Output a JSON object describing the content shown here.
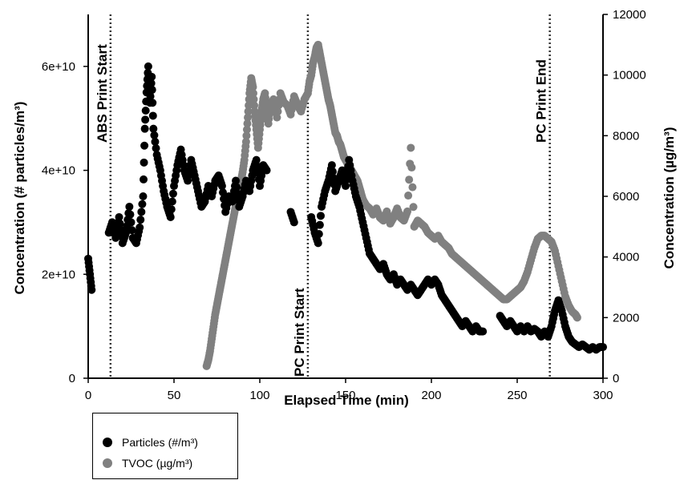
{
  "chart_data": {
    "type": "scatter",
    "xlabel": "Elapsed Time (min)",
    "ylabel_left": "Concentration (# particles/m³)",
    "ylabel_right": "Concentration (µg/m³)",
    "xlim": [
      0,
      300
    ],
    "ylim_left": [
      0,
      70000000000
    ],
    "ylim_right": [
      0,
      12000
    ],
    "x_ticks": [
      0,
      50,
      100,
      150,
      200,
      250,
      300
    ],
    "y_left_ticks": [
      0,
      20000000000,
      40000000000,
      60000000000
    ],
    "y_left_tick_labels": [
      "0",
      "2e+10",
      "4e+10",
      "6e+10"
    ],
    "y_right_ticks": [
      0,
      2000,
      4000,
      6000,
      8000,
      10000,
      12000
    ],
    "annotations": [
      {
        "x": 13,
        "label": "ABS Print Start"
      },
      {
        "x": 128,
        "label": "PC Print Start"
      },
      {
        "x": 269,
        "label": "PC Print End"
      }
    ],
    "legend_placement": "bottom-left, outside plot",
    "series": [
      {
        "name": "Particles (#/m³)",
        "axis": "left",
        "color": "#000000",
        "points": [
          [
            0,
            23000000000
          ],
          [
            1,
            20000000000
          ],
          [
            2,
            17000000000
          ],
          [
            12,
            28000000000
          ],
          [
            14,
            30000000000
          ],
          [
            16,
            27000000000
          ],
          [
            18,
            31000000000
          ],
          [
            20,
            26000000000
          ],
          [
            22,
            28000000000
          ],
          [
            24,
            33000000000
          ],
          [
            26,
            27000000000
          ],
          [
            28,
            26000000000
          ],
          [
            30,
            29000000000
          ],
          [
            32,
            35000000000
          ],
          [
            33,
            48000000000
          ],
          [
            34,
            55000000000
          ],
          [
            35,
            60000000000
          ],
          [
            36,
            53000000000
          ],
          [
            37,
            58000000000
          ],
          [
            38,
            48000000000
          ],
          [
            40,
            43000000000
          ],
          [
            42,
            40000000000
          ],
          [
            44,
            36000000000
          ],
          [
            46,
            33000000000
          ],
          [
            48,
            31000000000
          ],
          [
            50,
            37000000000
          ],
          [
            52,
            41000000000
          ],
          [
            54,
            44000000000
          ],
          [
            56,
            40000000000
          ],
          [
            58,
            38000000000
          ],
          [
            60,
            42000000000
          ],
          [
            62,
            39000000000
          ],
          [
            64,
            36000000000
          ],
          [
            66,
            33000000000
          ],
          [
            68,
            34000000000
          ],
          [
            70,
            37000000000
          ],
          [
            72,
            35000000000
          ],
          [
            74,
            38000000000
          ],
          [
            76,
            39000000000
          ],
          [
            78,
            37000000000
          ],
          [
            80,
            32000000000
          ],
          [
            82,
            35000000000
          ],
          [
            84,
            34000000000
          ],
          [
            86,
            38000000000
          ],
          [
            88,
            33000000000
          ],
          [
            90,
            35000000000
          ],
          [
            92,
            38000000000
          ],
          [
            94,
            36000000000
          ],
          [
            96,
            40000000000
          ],
          [
            98,
            42000000000
          ],
          [
            100,
            37000000000
          ],
          [
            102,
            41000000000
          ],
          [
            104,
            40000000000
          ],
          [
            118,
            32000000000
          ],
          [
            120,
            30000000000
          ],
          [
            130,
            31000000000
          ],
          [
            132,
            28000000000
          ],
          [
            134,
            26000000000
          ],
          [
            136,
            33000000000
          ],
          [
            138,
            36000000000
          ],
          [
            140,
            38000000000
          ],
          [
            142,
            41000000000
          ],
          [
            144,
            36000000000
          ],
          [
            146,
            38000000000
          ],
          [
            148,
            40000000000
          ],
          [
            150,
            37000000000
          ],
          [
            152,
            42000000000
          ],
          [
            154,
            38000000000
          ],
          [
            156,
            35000000000
          ],
          [
            158,
            33000000000
          ],
          [
            160,
            30000000000
          ],
          [
            162,
            27000000000
          ],
          [
            164,
            24000000000
          ],
          [
            166,
            23000000000
          ],
          [
            168,
            22000000000
          ],
          [
            170,
            21000000000
          ],
          [
            172,
            22000000000
          ],
          [
            174,
            20000000000
          ],
          [
            176,
            19000000000
          ],
          [
            178,
            20000000000
          ],
          [
            180,
            18000000000
          ],
          [
            182,
            19000000000
          ],
          [
            184,
            18000000000
          ],
          [
            186,
            17000000000
          ],
          [
            188,
            18000000000
          ],
          [
            190,
            17000000000
          ],
          [
            192,
            16000000000
          ],
          [
            194,
            17000000000
          ],
          [
            196,
            18000000000
          ],
          [
            198,
            19000000000
          ],
          [
            200,
            18000000000
          ],
          [
            202,
            19000000000
          ],
          [
            204,
            18000000000
          ],
          [
            206,
            16000000000
          ],
          [
            208,
            15000000000
          ],
          [
            210,
            14000000000
          ],
          [
            212,
            13000000000
          ],
          [
            214,
            12000000000
          ],
          [
            216,
            11000000000
          ],
          [
            218,
            10000000000
          ],
          [
            220,
            11000000000
          ],
          [
            222,
            10000000000
          ],
          [
            224,
            9000000000
          ],
          [
            226,
            10000000000
          ],
          [
            228,
            9000000000
          ],
          [
            230,
            9000000000
          ],
          [
            240,
            12000000000
          ],
          [
            242,
            11000000000
          ],
          [
            244,
            10000000000
          ],
          [
            246,
            11000000000
          ],
          [
            248,
            10000000000
          ],
          [
            250,
            9000000000
          ],
          [
            252,
            10000000000
          ],
          [
            254,
            9000000000
          ],
          [
            256,
            10000000000
          ],
          [
            258,
            9000000000
          ],
          [
            260,
            9500000000
          ],
          [
            262,
            9000000000
          ],
          [
            264,
            8000000000
          ],
          [
            266,
            9000000000
          ],
          [
            268,
            8000000000
          ],
          [
            270,
            10000000000
          ],
          [
            272,
            13000000000
          ],
          [
            274,
            15000000000
          ],
          [
            276,
            13000000000
          ],
          [
            278,
            10000000000
          ],
          [
            280,
            8000000000
          ],
          [
            282,
            7000000000
          ],
          [
            284,
            6500000000
          ],
          [
            286,
            6000000000
          ],
          [
            288,
            6500000000
          ],
          [
            290,
            6000000000
          ],
          [
            292,
            5500000000
          ],
          [
            294,
            6000000000
          ],
          [
            296,
            5500000000
          ],
          [
            298,
            6000000000
          ],
          [
            300,
            6000000000
          ]
        ]
      },
      {
        "name": "TVOC (µg/m³)",
        "axis": "right",
        "color": "#808080",
        "points": [
          [
            69,
            400
          ],
          [
            70,
            600
          ],
          [
            71,
            900
          ],
          [
            72,
            1300
          ],
          [
            73,
            1700
          ],
          [
            74,
            2100
          ],
          [
            75,
            2400
          ],
          [
            76,
            2700
          ],
          [
            77,
            3000
          ],
          [
            78,
            3300
          ],
          [
            79,
            3600
          ],
          [
            80,
            3900
          ],
          [
            81,
            4200
          ],
          [
            82,
            4500
          ],
          [
            83,
            4800
          ],
          [
            84,
            5100
          ],
          [
            85,
            5400
          ],
          [
            86,
            5700
          ],
          [
            87,
            6000
          ],
          [
            88,
            6200
          ],
          [
            89,
            6500
          ],
          [
            90,
            6800
          ],
          [
            91,
            7200
          ],
          [
            92,
            7800
          ],
          [
            93,
            8600
          ],
          [
            94,
            9400
          ],
          [
            95,
            9900
          ],
          [
            96,
            9600
          ],
          [
            97,
            8800
          ],
          [
            98,
            8200
          ],
          [
            99,
            7600
          ],
          [
            100,
            8200
          ],
          [
            101,
            8800
          ],
          [
            102,
            9200
          ],
          [
            103,
            9400
          ],
          [
            104,
            8800
          ],
          [
            105,
            8400
          ],
          [
            106,
            9000
          ],
          [
            108,
            9200
          ],
          [
            110,
            8600
          ],
          [
            112,
            9400
          ],
          [
            114,
            9100
          ],
          [
            116,
            9000
          ],
          [
            118,
            8700
          ],
          [
            120,
            9300
          ],
          [
            122,
            9000
          ],
          [
            124,
            8800
          ],
          [
            126,
            9200
          ],
          [
            128,
            9400
          ],
          [
            129,
            9800
          ],
          [
            130,
            10000
          ],
          [
            131,
            10400
          ],
          [
            132,
            10600
          ],
          [
            133,
            10900
          ],
          [
            134,
            11000
          ],
          [
            135,
            10700
          ],
          [
            136,
            10400
          ],
          [
            137,
            10100
          ],
          [
            138,
            9800
          ],
          [
            139,
            9500
          ],
          [
            140,
            9200
          ],
          [
            141,
            9000
          ],
          [
            142,
            8700
          ],
          [
            143,
            8400
          ],
          [
            144,
            8100
          ],
          [
            145,
            8000
          ],
          [
            146,
            7800
          ],
          [
            147,
            7700
          ],
          [
            148,
            7500
          ],
          [
            149,
            7300
          ],
          [
            150,
            7200
          ],
          [
            151,
            7100
          ],
          [
            152,
            7000
          ],
          [
            153,
            6900
          ],
          [
            154,
            6800
          ],
          [
            155,
            6700
          ],
          [
            156,
            6600
          ],
          [
            157,
            6500
          ],
          [
            158,
            6300
          ],
          [
            159,
            6100
          ],
          [
            160,
            5900
          ],
          [
            162,
            5700
          ],
          [
            164,
            5600
          ],
          [
            166,
            5400
          ],
          [
            168,
            5600
          ],
          [
            170,
            5300
          ],
          [
            172,
            5200
          ],
          [
            174,
            5500
          ],
          [
            176,
            5100
          ],
          [
            178,
            5300
          ],
          [
            180,
            5600
          ],
          [
            182,
            5300
          ],
          [
            184,
            5200
          ],
          [
            186,
            5500
          ],
          [
            188,
            7600
          ],
          [
            190,
            5000
          ],
          [
            192,
            5200
          ],
          [
            194,
            5100
          ],
          [
            196,
            5000
          ],
          [
            198,
            4800
          ],
          [
            200,
            4700
          ],
          [
            202,
            4600
          ],
          [
            204,
            4700
          ],
          [
            206,
            4500
          ],
          [
            208,
            4400
          ],
          [
            210,
            4300
          ],
          [
            212,
            4100
          ],
          [
            214,
            4000
          ],
          [
            216,
            3900
          ],
          [
            218,
            3800
          ],
          [
            220,
            3700
          ],
          [
            222,
            3600
          ],
          [
            224,
            3500
          ],
          [
            226,
            3400
          ],
          [
            228,
            3300
          ],
          [
            230,
            3200
          ],
          [
            232,
            3100
          ],
          [
            234,
            3000
          ],
          [
            236,
            2900
          ],
          [
            238,
            2800
          ],
          [
            240,
            2700
          ],
          [
            242,
            2600
          ],
          [
            244,
            2600
          ],
          [
            246,
            2700
          ],
          [
            248,
            2800
          ],
          [
            250,
            2900
          ],
          [
            252,
            3000
          ],
          [
            254,
            3200
          ],
          [
            256,
            3500
          ],
          [
            258,
            3900
          ],
          [
            260,
            4300
          ],
          [
            262,
            4600
          ],
          [
            264,
            4700
          ],
          [
            266,
            4700
          ],
          [
            268,
            4600
          ],
          [
            270,
            4500
          ],
          [
            272,
            4200
          ],
          [
            274,
            3700
          ],
          [
            276,
            3200
          ],
          [
            278,
            2700
          ],
          [
            280,
            2400
          ],
          [
            282,
            2200
          ],
          [
            284,
            2100
          ],
          [
            285,
            2000
          ]
        ]
      }
    ]
  }
}
